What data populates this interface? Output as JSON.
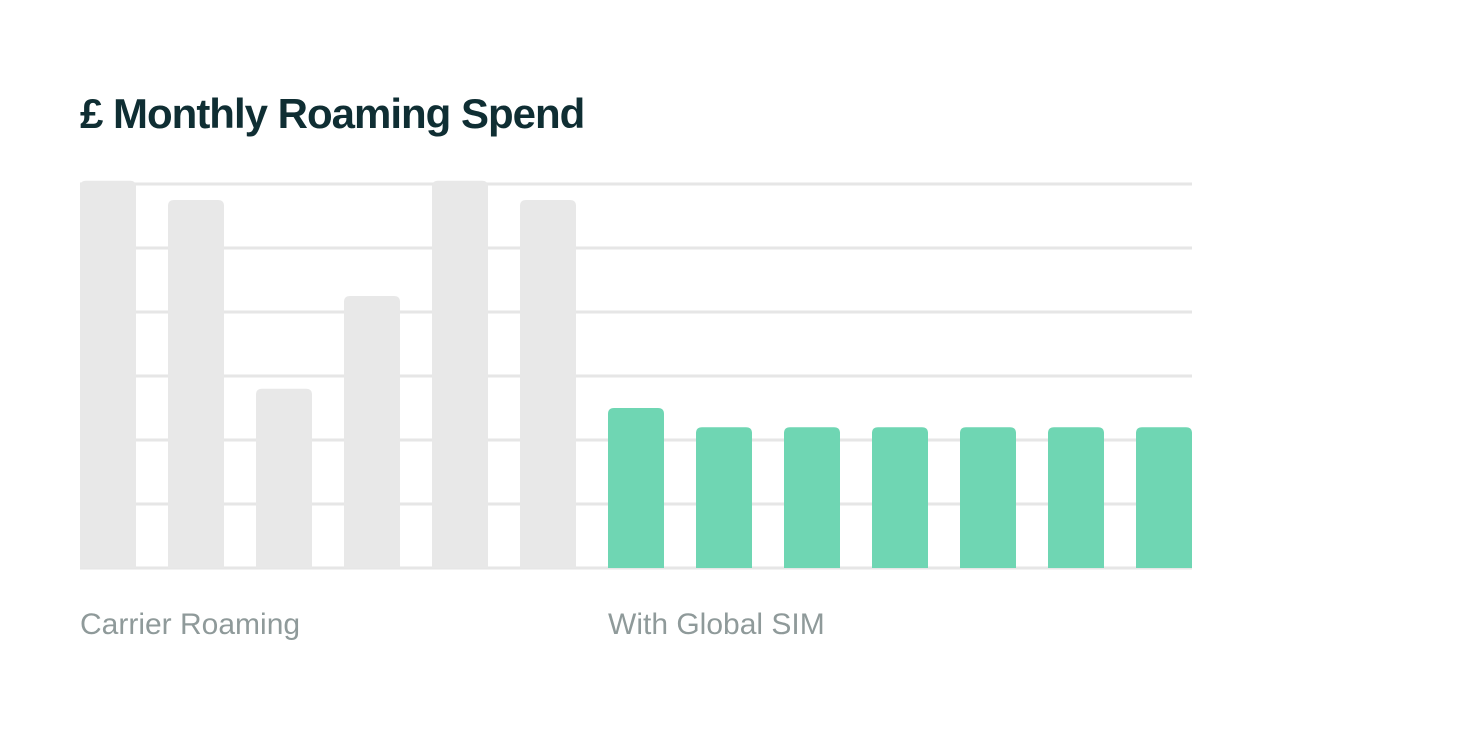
{
  "chart_data": {
    "type": "bar",
    "title": "£ Monthly Roaming Spend",
    "categories": [
      null,
      null,
      null,
      null,
      null,
      null,
      null,
      null,
      null,
      null,
      null,
      null,
      null
    ],
    "series": [
      {
        "name": "Carrier Roaming",
        "color": "#e8e8e8",
        "values": [
          6.05,
          5.75,
          2.8,
          4.25,
          6.05,
          5.75,
          null,
          null,
          null,
          null,
          null,
          null,
          null
        ]
      },
      {
        "name": "With Global SIM",
        "color": "#6fd6b3",
        "values": [
          null,
          null,
          null,
          null,
          null,
          null,
          2.5,
          2.2,
          2.2,
          2.2,
          2.2,
          2.2,
          2.2
        ]
      }
    ],
    "ylim": [
      0,
      6
    ],
    "yticks": [
      0,
      1,
      2,
      3,
      4,
      5,
      6
    ],
    "grid": true
  }
}
